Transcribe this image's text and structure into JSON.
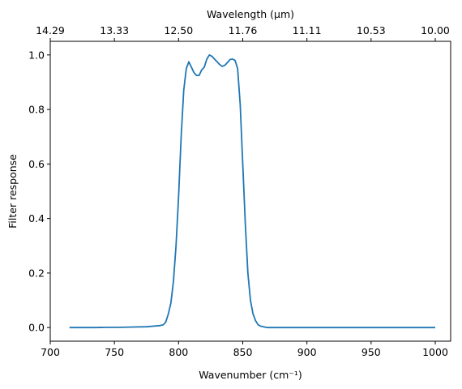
{
  "chart_data": {
    "type": "line",
    "xlabel": "Wavenumber (cm⁻¹)",
    "ylabel": "Filter response",
    "top_xlabel": "Wavelength (μm)",
    "xlim": [
      700,
      1012
    ],
    "ylim": [
      -0.05,
      1.05
    ],
    "xticks": [
      700,
      750,
      800,
      850,
      900,
      950,
      1000
    ],
    "yticks": [
      0.0,
      0.2,
      0.4,
      0.6,
      0.8,
      1.0
    ],
    "xtick_labels": [
      "700",
      "750",
      "800",
      "850",
      "900",
      "950",
      "1000"
    ],
    "ytick_labels": [
      "0.0",
      "0.2",
      "0.4",
      "0.6",
      "0.8",
      "1.0"
    ],
    "top_xticks": [
      700,
      750,
      800,
      850,
      900,
      950,
      1000
    ],
    "top_xtick_labels": [
      "14.29",
      "13.33",
      "12.50",
      "11.76",
      "11.11",
      "10.53",
      "10.00"
    ],
    "grid": false,
    "series": [
      {
        "color": "#1f77b4",
        "x": [
          715,
          725,
          735,
          745,
          755,
          765,
          775,
          780,
          785,
          788,
          790,
          792,
          794,
          796,
          798,
          800,
          802,
          804,
          806,
          808,
          810,
          812,
          814,
          816,
          818,
          820,
          822,
          824,
          826,
          828,
          830,
          832,
          834,
          836,
          838,
          840,
          842,
          844,
          846,
          848,
          850,
          852,
          854,
          856,
          858,
          860,
          862,
          864,
          866,
          868,
          870,
          872,
          874,
          876,
          878,
          880,
          882,
          884,
          886,
          890,
          900,
          910,
          920,
          930,
          940,
          950,
          960,
          970,
          980,
          990,
          1000
        ],
        "y": [
          0.0,
          0.0,
          0.0,
          0.001,
          0.001,
          0.002,
          0.003,
          0.005,
          0.007,
          0.01,
          0.02,
          0.05,
          0.09,
          0.17,
          0.3,
          0.48,
          0.7,
          0.87,
          0.95,
          0.975,
          0.955,
          0.935,
          0.925,
          0.925,
          0.945,
          0.955,
          0.985,
          1.0,
          0.995,
          0.985,
          0.975,
          0.965,
          0.958,
          0.962,
          0.972,
          0.983,
          0.985,
          0.98,
          0.95,
          0.82,
          0.6,
          0.38,
          0.2,
          0.1,
          0.05,
          0.025,
          0.01,
          0.005,
          0.003,
          0.001,
          0.0,
          0.0,
          0.0,
          0.0,
          0.0,
          0.0,
          0.0,
          0.0,
          0.0,
          0.0,
          0.0,
          0.0,
          0.0,
          0.0,
          0.0,
          0.0,
          0.0,
          0.0,
          0.0,
          0.0,
          0.0
        ]
      }
    ]
  }
}
